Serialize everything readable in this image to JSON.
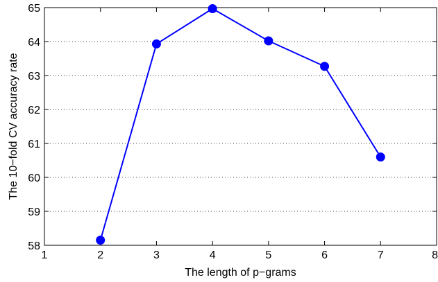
{
  "chart_data": {
    "type": "line",
    "title": "",
    "xlabel": "The length of p−grams",
    "ylabel": "The 10−fold CV accuracy rate",
    "xlim": [
      1,
      8
    ],
    "ylim": [
      58,
      65
    ],
    "xticks": [
      "1",
      "2",
      "3",
      "4",
      "5",
      "6",
      "7",
      "8"
    ],
    "yticks": [
      "58",
      "59",
      "60",
      "61",
      "62",
      "63",
      "64",
      "65"
    ],
    "grid": "horizontal dotted",
    "legend": "none",
    "series": [
      {
        "x": [
          2,
          3,
          4,
          5,
          6,
          7
        ],
        "y": [
          58.15,
          63.93,
          64.97,
          64.02,
          63.27,
          60.6
        ],
        "color": "#0000ff",
        "marker": "circle"
      }
    ]
  }
}
